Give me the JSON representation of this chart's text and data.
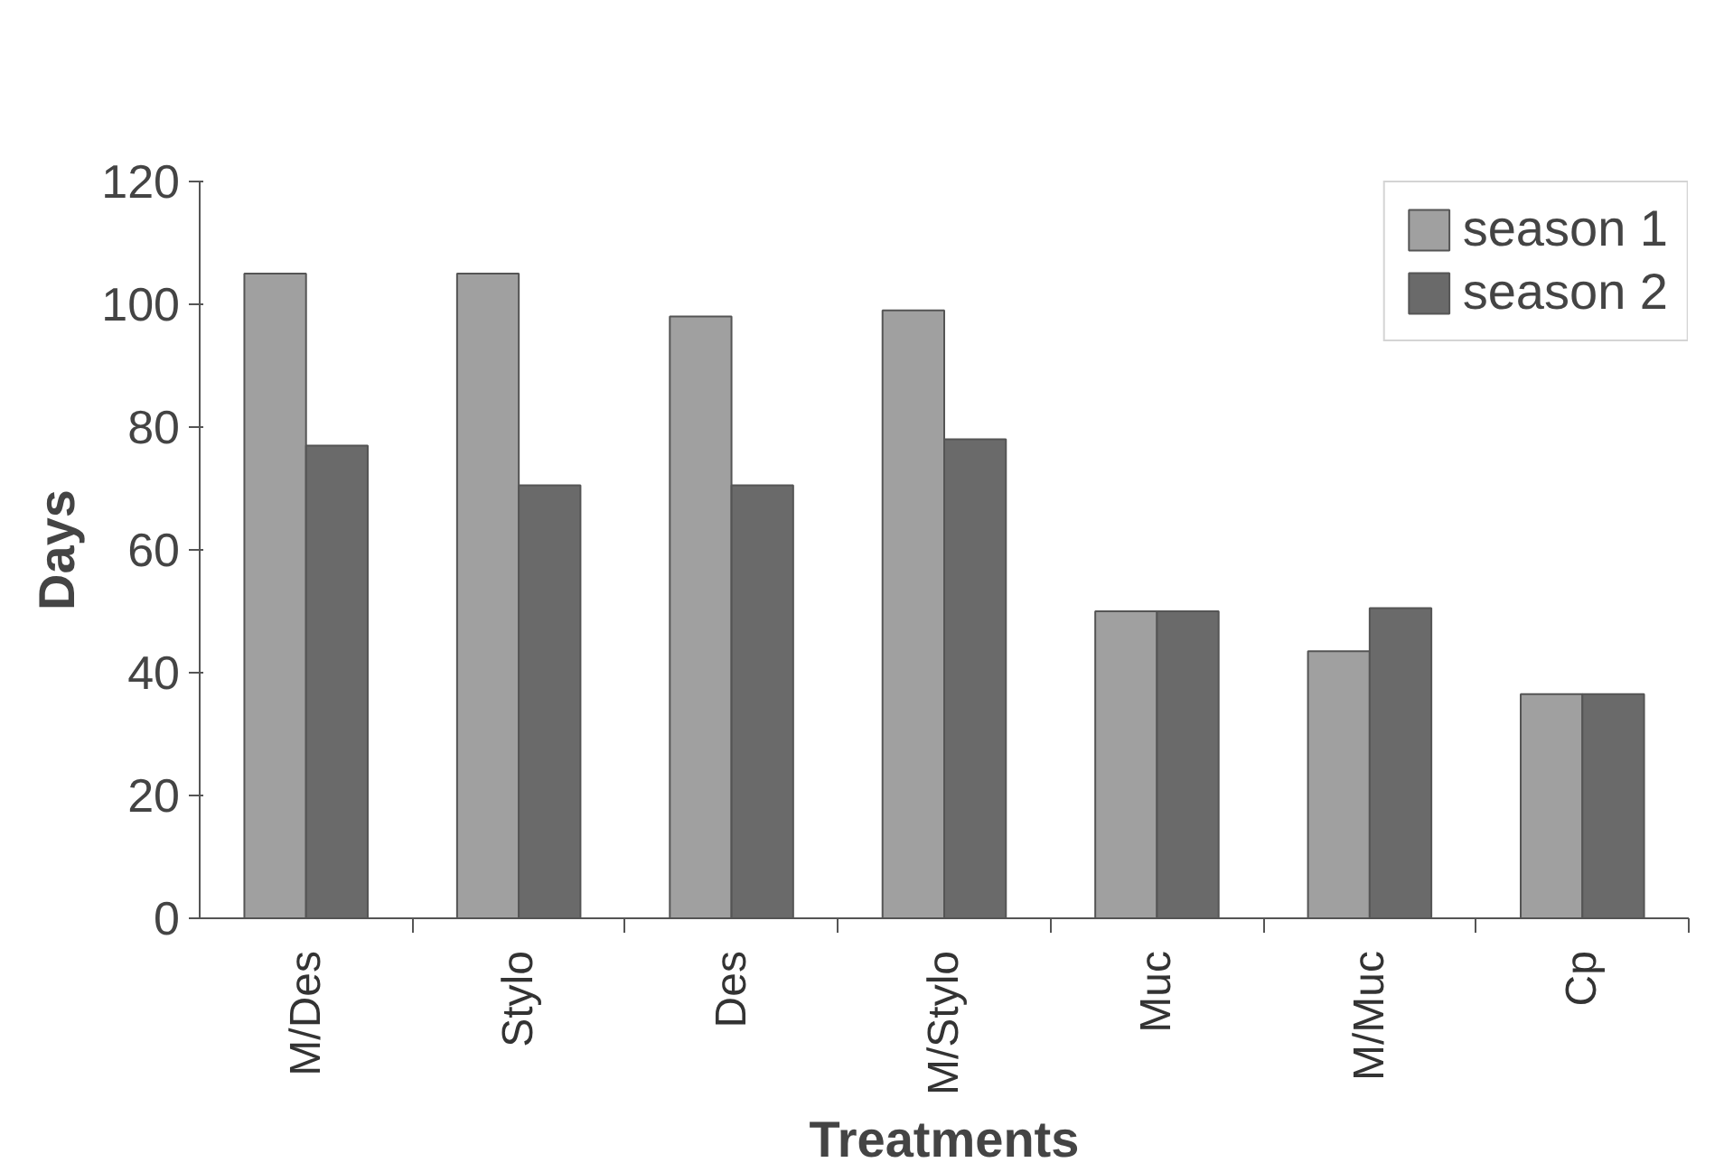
{
  "chart_data": {
    "type": "bar",
    "xlabel": "Treatments",
    "ylabel": "Days",
    "categories": [
      "M/Des",
      "Stylo",
      "Des",
      "M/Stylo",
      "Muc",
      "M/Muc",
      "Cp"
    ],
    "series": [
      {
        "name": "season 1",
        "color": "#a0a0a0",
        "values": [
          105,
          105,
          98,
          99,
          50,
          43.5,
          36.5
        ]
      },
      {
        "name": "season 2",
        "color": "#6a6a6a",
        "values": [
          77,
          70.5,
          70.5,
          78,
          50,
          50.5,
          36.5
        ]
      }
    ],
    "ylim": [
      0,
      120
    ],
    "yticks": [
      0,
      20,
      40,
      60,
      80,
      100,
      120
    ],
    "grid": false,
    "legend": "top right"
  }
}
